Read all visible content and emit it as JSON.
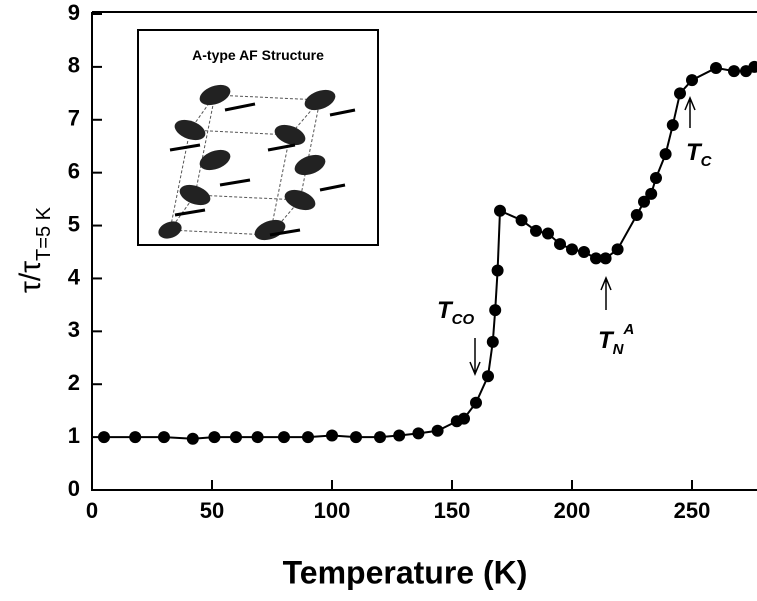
{
  "chart_data": {
    "type": "line",
    "x_label": "Temperature (K)",
    "y_label": "τ/τ",
    "y_label_subscript": "T=5 K",
    "inset_title": "A-type AF Structure",
    "annotations": [
      {
        "text": "T",
        "subscript": "CO"
      },
      {
        "text": "T",
        "subscript": "N",
        "superscript": "A"
      },
      {
        "text": "T",
        "subscript": "C"
      }
    ],
    "x": [
      5,
      18,
      30,
      42,
      51,
      60,
      69,
      80,
      90,
      100,
      110,
      120,
      128,
      136,
      144,
      152,
      155,
      160,
      165,
      167,
      168,
      169,
      170,
      179,
      185,
      190,
      195,
      200,
      205,
      210,
      214,
      219,
      227,
      230,
      233,
      235,
      239,
      242,
      245,
      250,
      260,
      267.5,
      272.5,
      276
    ],
    "series": [
      {
        "color": "#000000",
        "values": [
          1.0,
          1.0,
          1.0,
          0.97,
          1.0,
          1.0,
          1.0,
          1.0,
          1.0,
          1.03,
          1.0,
          1.0,
          1.03,
          1.07,
          1.12,
          1.3,
          1.35,
          1.65,
          2.15,
          2.8,
          3.4,
          4.15,
          5.28,
          5.1,
          4.9,
          4.85,
          4.65,
          4.55,
          4.5,
          4.38,
          4.38,
          4.55,
          5.2,
          5.45,
          5.6,
          5.9,
          6.35,
          6.9,
          7.5,
          7.75,
          7.98,
          7.92,
          7.92,
          8.0
        ]
      }
    ],
    "xlim": [
      0,
      277
    ],
    "ylim": [
      0,
      9
    ],
    "xticks": [
      0,
      50,
      100,
      150,
      200,
      250
    ],
    "yticks": [
      0,
      1,
      2,
      3,
      4,
      5,
      6,
      7,
      8,
      9
    ]
  }
}
